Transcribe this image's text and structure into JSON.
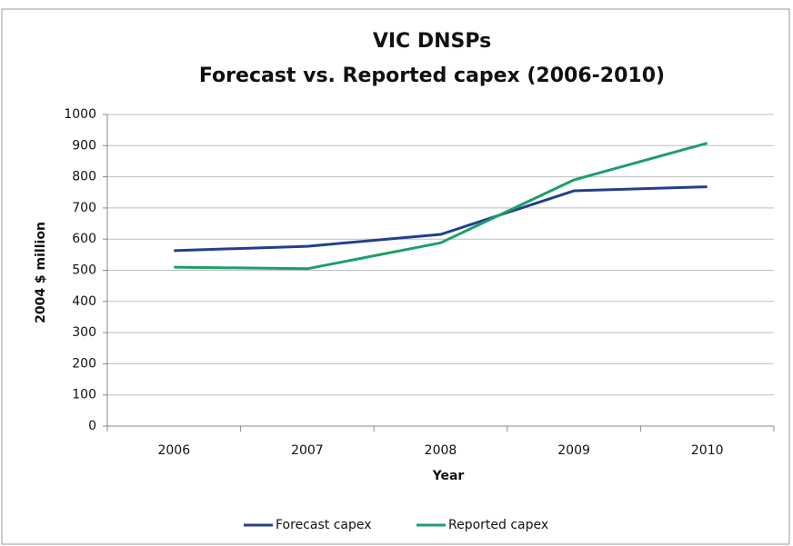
{
  "chart_data": {
    "type": "line",
    "title": "VIC DNSPs",
    "subtitle": "Forecast vs. Reported capex (2006-2010)",
    "xlabel": "Year",
    "ylabel": "2004 $ million",
    "categories": [
      "2006",
      "2007",
      "2008",
      "2009",
      "2010"
    ],
    "series": [
      {
        "name": "Forecast capex",
        "color": "#243f8c",
        "values": [
          563,
          577,
          615,
          755,
          768
        ]
      },
      {
        "name": "Reported capex",
        "color": "#1e9e68",
        "values": [
          510,
          505,
          588,
          790,
          908
        ]
      }
    ],
    "ylim": [
      0,
      1000
    ],
    "yticks": [
      0,
      100,
      200,
      300,
      400,
      500,
      600,
      700,
      800,
      900,
      1000
    ],
    "grid": true,
    "legend": "bottom"
  }
}
